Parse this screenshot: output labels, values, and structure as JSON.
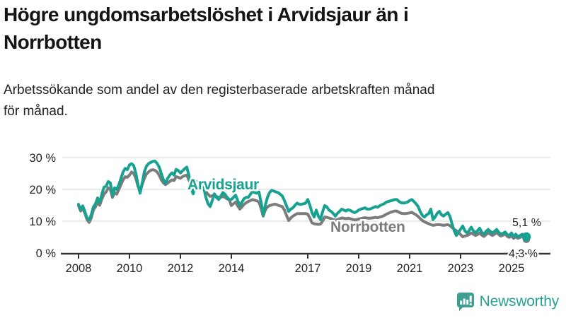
{
  "header": {
    "title": "Högre ungdomsarbetslöshet i Arvidsjaur än i\nNorrbotten",
    "subtitle": "Arbetssökande som andel av den registerbaserade arbetskraften månad\nför månad."
  },
  "footer": {
    "brand": "Newsworthy",
    "icon": "bar-chart-speech-bubble-icon"
  },
  "colors": {
    "arvidsjaur": "#16a191",
    "norrbotten": "#7c7c7c",
    "grid": "#e3e3e3",
    "axis": "#333333",
    "tick_text": "#252525",
    "annotation_text": "#252525",
    "brand": "#27a193",
    "background": "#ffffff"
  },
  "chart_data": {
    "type": "line",
    "title": "Högre ungdomsarbetslöshet i Arvidsjaur än i Norrbotten",
    "subtitle": "Arbetssökande som andel av den registerbaserade arbetskraften månad för månad.",
    "unit": "%",
    "frequency": "monthly",
    "start": "2008-01",
    "end": "2025-08",
    "ylim": [
      0,
      30
    ],
    "grid": "horizontal",
    "legend": "inline-labels",
    "y_ticks": [
      {
        "value": 0,
        "label": "0 %"
      },
      {
        "value": 10,
        "label": "10 %"
      },
      {
        "value": 20,
        "label": "20 %"
      },
      {
        "value": 30,
        "label": "30 %"
      }
    ],
    "x_ticks": [
      {
        "year": 2008,
        "label": "2008"
      },
      {
        "year": 2010,
        "label": "2010"
      },
      {
        "year": 2012,
        "label": "2012"
      },
      {
        "year": 2014,
        "label": "2014"
      },
      {
        "year": 2017,
        "label": "2017"
      },
      {
        "year": 2019,
        "label": "2019"
      },
      {
        "year": 2021,
        "label": "2021"
      },
      {
        "year": 2023,
        "label": "2023"
      },
      {
        "year": 2025,
        "label": "2025"
      }
    ],
    "series": [
      {
        "name": "Arvidsjaur",
        "color": "#16a191",
        "end_label": "5,1 %",
        "end_value": 5.1,
        "values": [
          15.3,
          13.6,
          14.8,
          13.0,
          11.0,
          10.4,
          12.0,
          14.5,
          15.5,
          17.3,
          15.9,
          18.5,
          20.7,
          21.0,
          22.5,
          22.0,
          18.1,
          20.5,
          19.9,
          21.5,
          23.5,
          25.5,
          26.6,
          26.2,
          27.7,
          28.1,
          27.5,
          25.1,
          21.5,
          18.8,
          22.0,
          25.5,
          27.3,
          28.1,
          28.5,
          28.8,
          28.9,
          28.2,
          27.0,
          25.0,
          23.0,
          21.9,
          23.5,
          24.5,
          25.2,
          24.5,
          26.3,
          25.9,
          25.2,
          25.8,
          26.5,
          27.0,
          24.5,
          20.4,
          18.6,
          21.0,
          22.6,
          21.5,
          22.0,
          20.5,
          17.5,
          15.5,
          14.6,
          16.5,
          18.6,
          17.5,
          16.8,
          17.8,
          19.0,
          18.5,
          17.5,
          16.8,
          16.8,
          17.5,
          18.2,
          16.5,
          14.9,
          16.0,
          17.1,
          17.5,
          17.5,
          18.5,
          19.3,
          19.0,
          18.8,
          19.2,
          16.0,
          12.0,
          15.0,
          17.5,
          19.0,
          19.7,
          19.5,
          19.2,
          19.0,
          18.5,
          17.9,
          16.5,
          14.8,
          13.1,
          13.8,
          14.2,
          15.0,
          15.7,
          15.3,
          15.3,
          15.5,
          15.7,
          16.8,
          15.0,
          12.7,
          11.3,
          13.5,
          11.6,
          10.5,
          13.0,
          14.9,
          14.5,
          13.5,
          13.1,
          12.4,
          11.6,
          12.5,
          13.1,
          13.8,
          13.5,
          13.2,
          13.6,
          13.4,
          13.0,
          12.7,
          13.0,
          13.5,
          13.8,
          14.0,
          14.2,
          13.8,
          13.8,
          14.0,
          14.3,
          14.6,
          14.4,
          14.9,
          15.2,
          15.5,
          16.0,
          16.2,
          16.4,
          16.6,
          16.8,
          16.8,
          16.2,
          15.8,
          15.7,
          15.8,
          16.0,
          16.5,
          16.8,
          16.2,
          15.5,
          14.6,
          13.0,
          11.8,
          11.3,
          12.0,
          12.4,
          13.8,
          10.5,
          11.3,
          12.5,
          13.1,
          12.0,
          11.6,
          12.2,
          12.7,
          11.5,
          9.1,
          7.0,
          5.5,
          6.5,
          7.5,
          8.5,
          7.0,
          6.3,
          7.0,
          8.1,
          7.0,
          6.3,
          7.0,
          7.8,
          6.5,
          5.9,
          6.8,
          7.4,
          6.8,
          6.3,
          6.8,
          7.4,
          6.5,
          5.9,
          6.2,
          6.6,
          5.8,
          5.5,
          6.3,
          5.1,
          5.9,
          5.1,
          5.5,
          5.9,
          5.5,
          5.1
        ]
      },
      {
        "name": "Norrbotten",
        "color": "#7c7c7c",
        "end_label": "4,3 %",
        "end_value": 4.3,
        "values": [
          14.9,
          13.2,
          14.0,
          12.5,
          10.5,
          9.6,
          11.0,
          13.5,
          14.5,
          16.0,
          15.0,
          17.0,
          18.5,
          19.2,
          20.5,
          20.0,
          17.5,
          19.0,
          18.5,
          20.0,
          21.5,
          23.0,
          24.0,
          23.8,
          24.5,
          25.5,
          25.0,
          23.5,
          21.0,
          19.5,
          21.5,
          23.5,
          24.8,
          25.5,
          26.0,
          26.2,
          26.0,
          25.5,
          24.5,
          23.0,
          22.0,
          21.5,
          22.0,
          22.5,
          23.0,
          22.8,
          24.0,
          23.8,
          23.5,
          24.0,
          24.3,
          24.5,
          23.0,
          21.5,
          20.5,
          20.8,
          20.8,
          20.5,
          20.3,
          20.0,
          19.3,
          18.5,
          17.8,
          18.0,
          18.3,
          17.8,
          17.5,
          17.5,
          17.8,
          17.5,
          17.0,
          16.8,
          14.9,
          15.5,
          16.0,
          14.8,
          13.8,
          14.5,
          15.3,
          15.8,
          16.2,
          16.5,
          16.8,
          16.6,
          16.4,
          16.0,
          14.0,
          11.6,
          13.5,
          14.5,
          14.9,
          15.1,
          15.3,
          15.3,
          15.0,
          14.8,
          14.6,
          13.5,
          11.8,
          10.2,
          11.0,
          11.6,
          12.0,
          12.4,
          12.4,
          12.4,
          12.4,
          12.4,
          12.2,
          11.0,
          9.5,
          9.2,
          9.1,
          9.0,
          9.1,
          10.0,
          11.3,
          11.2,
          11.0,
          10.8,
          10.5,
          10.3,
          10.5,
          10.8,
          11.0,
          10.9,
          10.8,
          10.9,
          10.8,
          10.6,
          10.4,
          10.5,
          10.7,
          10.8,
          11.0,
          11.1,
          11.0,
          10.9,
          11.0,
          11.1,
          11.2,
          11.1,
          11.3,
          11.5,
          11.8,
          12.2,
          12.5,
          12.8,
          13.0,
          13.2,
          13.2,
          12.8,
          12.5,
          12.4,
          12.4,
          12.5,
          12.6,
          12.8,
          12.4,
          12.0,
          11.5,
          10.8,
          10.2,
          9.8,
          9.5,
          9.2,
          8.9,
          8.7,
          8.8,
          8.9,
          8.9,
          8.8,
          8.7,
          8.8,
          8.9,
          8.6,
          8.0,
          7.5,
          7.0,
          6.5,
          5.8,
          5.1,
          5.3,
          5.5,
          5.8,
          6.3,
          5.9,
          5.5,
          5.8,
          6.3,
          5.6,
          5.2,
          5.8,
          6.3,
          5.9,
          5.5,
          5.9,
          6.4,
          5.8,
          5.3,
          5.6,
          6.0,
          5.2,
          4.9,
          5.4,
          4.6,
          5.2,
          4.6,
          4.9,
          5.2,
          4.7,
          4.3
        ]
      }
    ]
  }
}
